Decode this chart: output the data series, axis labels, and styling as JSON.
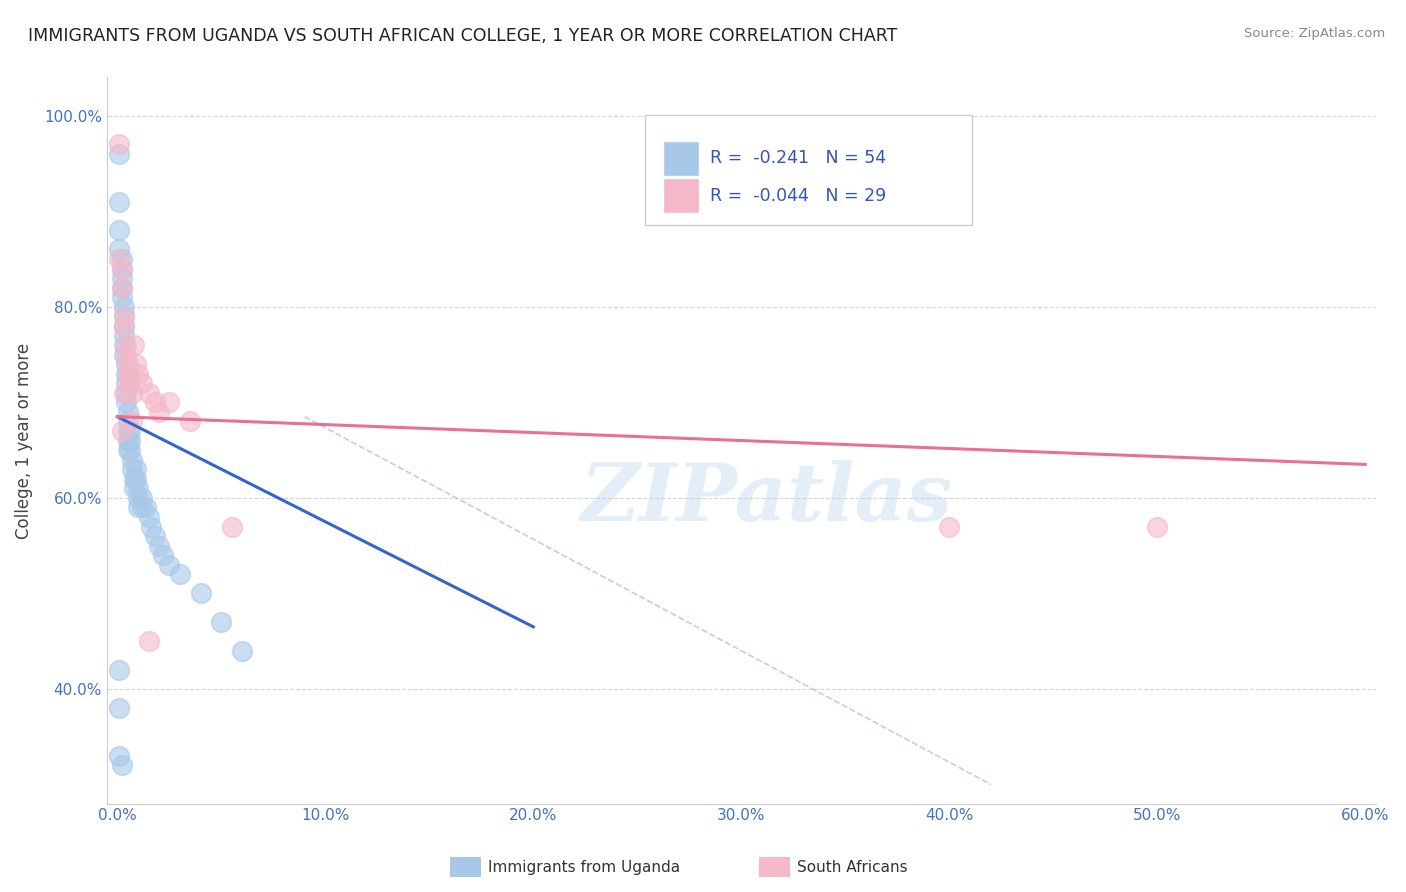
{
  "title": "IMMIGRANTS FROM UGANDA VS SOUTH AFRICAN COLLEGE, 1 YEAR OR MORE CORRELATION CHART",
  "source": "Source: ZipAtlas.com",
  "ylabel": "College, 1 year or more",
  "legend_label1": "Immigrants from Uganda",
  "legend_label2": "South Africans",
  "R1": "-0.241",
  "N1": "54",
  "R2": "-0.044",
  "N2": "29",
  "xlim": [
    -0.005,
    0.605
  ],
  "ylim": [
    0.28,
    1.04
  ],
  "xticks": [
    0.0,
    0.1,
    0.2,
    0.3,
    0.4,
    0.5,
    0.6
  ],
  "yticks": [
    0.4,
    0.6,
    0.8,
    1.0
  ],
  "xtick_labels": [
    "0.0%",
    "10.0%",
    "20.0%",
    "30.0%",
    "40.0%",
    "50.0%",
    "60.0%"
  ],
  "ytick_labels": [
    "40.0%",
    "60.0%",
    "80.0%",
    "100.0%"
  ],
  "color_blue": "#a8c8e8",
  "color_pink": "#f4b8c8",
  "color_blue_line": "#3366cc",
  "color_pink_line": "#e87090",
  "watermark": "ZIPatlas",
  "blue_scatter_x": [
    0.001,
    0.001,
    0.001,
    0.001,
    0.002,
    0.002,
    0.002,
    0.002,
    0.002,
    0.003,
    0.003,
    0.003,
    0.003,
    0.003,
    0.003,
    0.004,
    0.004,
    0.004,
    0.004,
    0.004,
    0.005,
    0.005,
    0.005,
    0.005,
    0.005,
    0.006,
    0.006,
    0.006,
    0.007,
    0.007,
    0.008,
    0.008,
    0.009,
    0.009,
    0.01,
    0.01,
    0.01,
    0.012,
    0.012,
    0.014,
    0.015,
    0.016,
    0.018,
    0.02,
    0.022,
    0.025,
    0.03,
    0.04,
    0.05,
    0.06,
    0.001,
    0.001,
    0.002,
    0.001
  ],
  "blue_scatter_y": [
    0.96,
    0.91,
    0.88,
    0.86,
    0.85,
    0.84,
    0.83,
    0.82,
    0.81,
    0.8,
    0.79,
    0.78,
    0.77,
    0.76,
    0.75,
    0.74,
    0.73,
    0.72,
    0.71,
    0.7,
    0.69,
    0.68,
    0.67,
    0.66,
    0.65,
    0.67,
    0.66,
    0.65,
    0.64,
    0.63,
    0.62,
    0.61,
    0.63,
    0.62,
    0.61,
    0.6,
    0.59,
    0.6,
    0.59,
    0.59,
    0.58,
    0.57,
    0.56,
    0.55,
    0.54,
    0.53,
    0.52,
    0.5,
    0.47,
    0.44,
    0.42,
    0.38,
    0.32,
    0.33
  ],
  "pink_scatter_x": [
    0.001,
    0.001,
    0.002,
    0.002,
    0.003,
    0.003,
    0.004,
    0.004,
    0.005,
    0.005,
    0.006,
    0.007,
    0.008,
    0.009,
    0.01,
    0.012,
    0.015,
    0.018,
    0.02,
    0.025,
    0.035,
    0.055,
    0.4,
    0.5,
    0.002,
    0.003,
    0.005,
    0.007,
    0.015
  ],
  "pink_scatter_y": [
    0.97,
    0.85,
    0.84,
    0.82,
    0.79,
    0.78,
    0.76,
    0.75,
    0.74,
    0.73,
    0.72,
    0.71,
    0.76,
    0.74,
    0.73,
    0.72,
    0.71,
    0.7,
    0.69,
    0.7,
    0.68,
    0.57,
    0.57,
    0.57,
    0.67,
    0.71,
    0.73,
    0.68,
    0.45
  ],
  "blue_line_x": [
    0.0,
    0.2
  ],
  "blue_line_y": [
    0.685,
    0.465
  ],
  "pink_line_x": [
    0.0,
    0.6
  ],
  "pink_line_y": [
    0.685,
    0.635
  ],
  "diag_line_x": [
    0.09,
    0.42
  ],
  "diag_line_y": [
    0.685,
    0.3
  ]
}
